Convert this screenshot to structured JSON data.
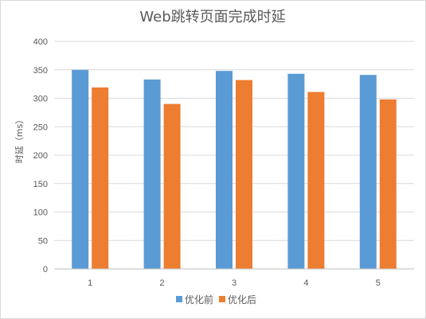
{
  "chart_data": {
    "type": "bar",
    "title": "Web跳转页面完成时延",
    "xlabel": "",
    "ylabel": "时延（ms）",
    "categories": [
      "1",
      "2",
      "3",
      "4",
      "5"
    ],
    "ylim": [
      0,
      400
    ],
    "yticks": [
      0,
      50,
      100,
      150,
      200,
      250,
      300,
      350,
      400
    ],
    "grid": true,
    "legend_position": "bottom",
    "series": [
      {
        "name": "优化前",
        "color": "#5b9bd5",
        "values": [
          350,
          333,
          348,
          343,
          341
        ]
      },
      {
        "name": "优化后",
        "color": "#ed7d31",
        "values": [
          319,
          290,
          332,
          311,
          298
        ]
      }
    ]
  }
}
